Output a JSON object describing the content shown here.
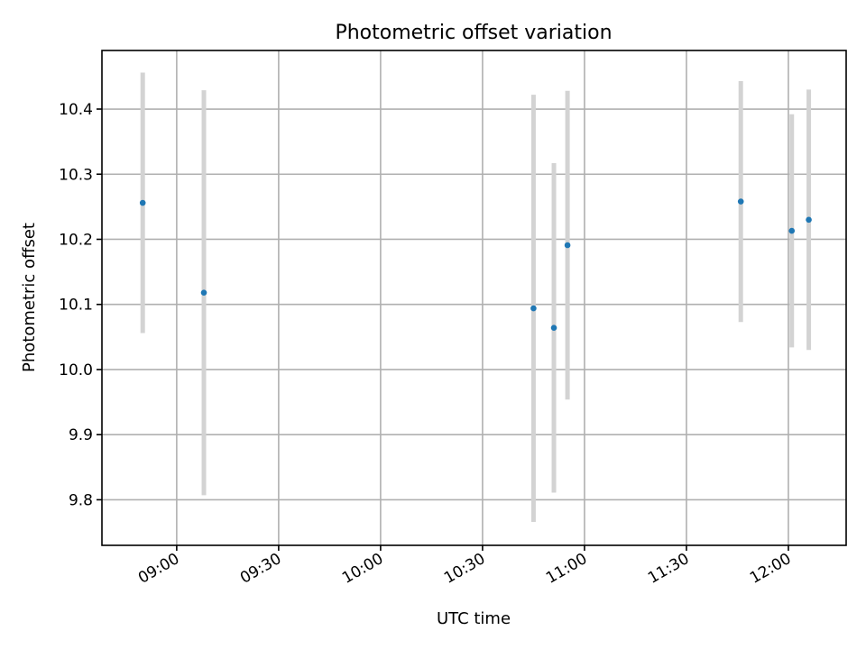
{
  "chart_data": {
    "type": "scatter",
    "title": "Photometric offset variation",
    "xlabel": "UTC time",
    "ylabel": "Photometric offset",
    "xlim": [
      "08:38",
      "12:17"
    ],
    "ylim": [
      9.73,
      10.49
    ],
    "x_ticks": [
      "09:00",
      "09:30",
      "10:00",
      "10:30",
      "11:00",
      "11:30",
      "12:00"
    ],
    "y_ticks": [
      9.8,
      9.9,
      10.0,
      10.1,
      10.2,
      10.3,
      10.4
    ],
    "grid": true,
    "marker_color": "#1f77b4",
    "errorbar_color": "#d3d3d3",
    "points": [
      {
        "x": "08:50",
        "y": 10.256,
        "err": 0.2
      },
      {
        "x": "09:08",
        "y": 10.118,
        "err": 0.311
      },
      {
        "x": "10:45",
        "y": 10.094,
        "err": 0.328
      },
      {
        "x": "10:51",
        "y": 10.064,
        "err": 0.253
      },
      {
        "x": "10:55",
        "y": 10.191,
        "err": 0.237
      },
      {
        "x": "11:46",
        "y": 10.258,
        "err": 0.185
      },
      {
        "x": "12:01",
        "y": 10.213,
        "err": 0.179
      },
      {
        "x": "12:06",
        "y": 10.23,
        "err": 0.2
      }
    ]
  }
}
